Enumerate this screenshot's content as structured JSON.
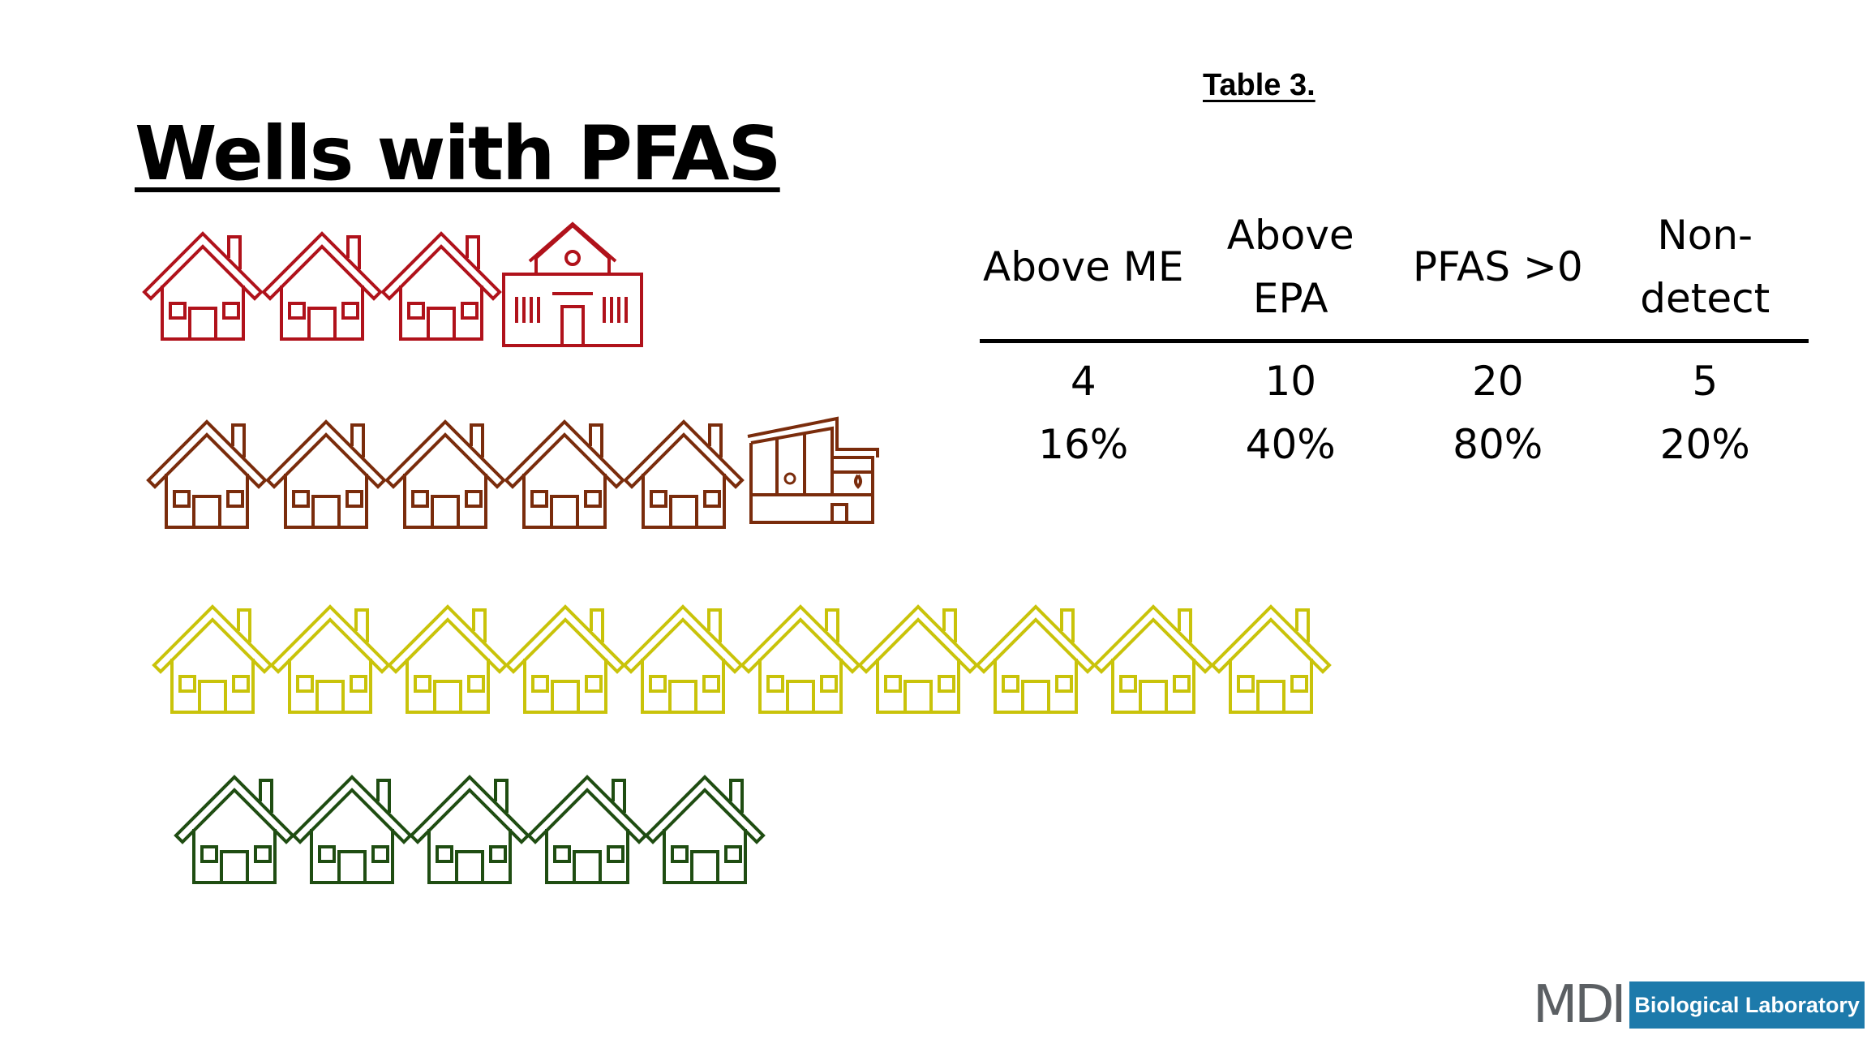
{
  "slide": {
    "title": "Wells with PFAS",
    "caption": "Table 3."
  },
  "table": {
    "headers": [
      {
        "line1": "Above ME",
        "line2": ""
      },
      {
        "line1": "Above",
        "line2": "EPA"
      },
      {
        "line1": "PFAS >0",
        "line2": ""
      },
      {
        "line1": "Non-",
        "line2": "detect"
      }
    ],
    "counts": [
      "4",
      "10",
      "20",
      "5"
    ],
    "percents": [
      "16%",
      "40%",
      "80%",
      "20%"
    ]
  },
  "icon_rows": [
    {
      "color": "#b0121b",
      "icons": [
        "house-icon",
        "house-icon",
        "house-icon",
        "school-icon"
      ]
    },
    {
      "color": "#7a2c0c",
      "icons": [
        "house-icon",
        "house-icon",
        "house-icon",
        "house-icon",
        "house-icon",
        "daycare-building-icon"
      ]
    },
    {
      "color": "#c9c30a",
      "icons": [
        "house-icon",
        "house-icon",
        "house-icon",
        "house-icon",
        "house-icon",
        "house-icon",
        "house-icon",
        "house-icon",
        "house-icon",
        "house-icon"
      ]
    },
    {
      "color": "#1f4d12",
      "icons": [
        "house-icon",
        "house-icon",
        "house-icon",
        "house-icon",
        "house-icon"
      ]
    }
  ],
  "logo": {
    "mark": "MDI",
    "name": "Biological Laboratory",
    "accent": "#1d7aab"
  }
}
